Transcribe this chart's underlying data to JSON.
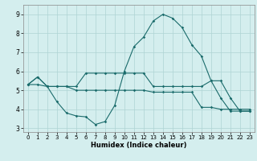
{
  "title": "",
  "xlabel": "Humidex (Indice chaleur)",
  "ylabel": "",
  "bg_color": "#d4eeee",
  "grid_color": "#aed4d4",
  "line_color": "#1a6b6b",
  "xlim": [
    -0.5,
    23.5
  ],
  "ylim": [
    2.8,
    9.5
  ],
  "yticks": [
    3,
    4,
    5,
    6,
    7,
    8,
    9
  ],
  "xticks": [
    0,
    1,
    2,
    3,
    4,
    5,
    6,
    7,
    8,
    9,
    10,
    11,
    12,
    13,
    14,
    15,
    16,
    17,
    18,
    19,
    20,
    21,
    22,
    23
  ],
  "line1_x": [
    0,
    1,
    2,
    3,
    4,
    5,
    6,
    7,
    8,
    9,
    10,
    11,
    12,
    13,
    14,
    15,
    16,
    17,
    18,
    19,
    20,
    21,
    22,
    23
  ],
  "line1_y": [
    5.3,
    5.7,
    5.2,
    4.4,
    3.8,
    3.65,
    3.6,
    3.2,
    3.35,
    4.2,
    6.0,
    7.3,
    7.8,
    8.65,
    9.0,
    8.8,
    8.3,
    7.4,
    6.8,
    5.5,
    5.5,
    4.6,
    3.9,
    3.9
  ],
  "line2_x": [
    0,
    1,
    2,
    3,
    4,
    5,
    6,
    7,
    8,
    9,
    10,
    11,
    12,
    13,
    14,
    15,
    16,
    17,
    18,
    19,
    20,
    21,
    22,
    23
  ],
  "line2_y": [
    5.3,
    5.7,
    5.2,
    5.2,
    5.2,
    5.2,
    5.9,
    5.9,
    5.9,
    5.9,
    5.9,
    5.9,
    5.9,
    5.2,
    5.2,
    5.2,
    5.2,
    5.2,
    5.2,
    5.5,
    4.6,
    3.9,
    3.9,
    3.9
  ],
  "line3_x": [
    0,
    1,
    2,
    3,
    4,
    5,
    6,
    7,
    8,
    9,
    10,
    11,
    12,
    13,
    14,
    15,
    16,
    17,
    18,
    19,
    20,
    21,
    22,
    23
  ],
  "line3_y": [
    5.3,
    5.3,
    5.2,
    5.2,
    5.2,
    5.0,
    5.0,
    5.0,
    5.0,
    5.0,
    5.0,
    5.0,
    5.0,
    4.9,
    4.9,
    4.9,
    4.9,
    4.9,
    4.1,
    4.1,
    4.0,
    4.0,
    4.0,
    4.0
  ]
}
